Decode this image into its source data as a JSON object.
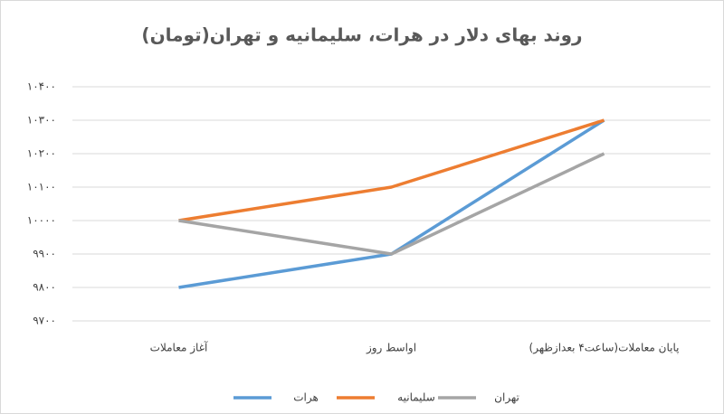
{
  "chart_data": {
    "type": "line",
    "title": "روند بهای دلار در هرات، سلیمانیه و تهران(تومان)",
    "categories": [
      "آغاز معاملات",
      "اواسط روز",
      "پایان معاملات(ساعت۴ بعدازظهر)"
    ],
    "series": [
      {
        "name": "هرات",
        "color": "#5b9bd5",
        "values": [
          9800,
          9900,
          10300
        ]
      },
      {
        "name": "سلیمانیه",
        "color": "#ed7d31",
        "values": [
          10000,
          10100,
          10300
        ]
      },
      {
        "name": "تهران",
        "color": "#a5a5a5",
        "values": [
          10000,
          9900,
          10200
        ]
      }
    ],
    "ylim": [
      9700,
      10400
    ],
    "yticks": [
      {
        "value": 9700,
        "label": "۹۷۰۰"
      },
      {
        "value": 9800,
        "label": "۹۸۰۰"
      },
      {
        "value": 9900,
        "label": "۹۹۰۰"
      },
      {
        "value": 10000,
        "label": "۱۰۰۰۰"
      },
      {
        "value": 10100,
        "label": "۱۰۱۰۰"
      },
      {
        "value": 10200,
        "label": "۱۰۲۰۰"
      },
      {
        "value": 10300,
        "label": "۱۰۳۰۰"
      },
      {
        "value": 10400,
        "label": "۱۰۴۰۰"
      }
    ],
    "grid": true
  }
}
